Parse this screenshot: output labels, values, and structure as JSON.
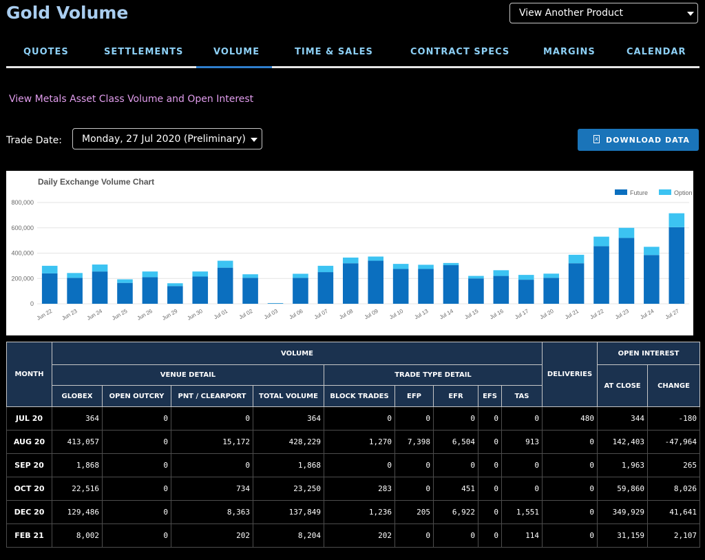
{
  "header": {
    "title": "Gold Volume",
    "product_select": "View Another Product"
  },
  "nav": {
    "tabs": [
      "QUOTES",
      "SETTLEMENTS",
      "VOLUME",
      "TIME & SALES",
      "CONTRACT SPECS",
      "MARGINS",
      "CALENDAR"
    ],
    "active": "VOLUME"
  },
  "asset_link": "View Metals Asset Class Volume and Open Interest",
  "trade_date": {
    "label": "Trade Date:",
    "value": "Monday, 27 Jul 2020 (Preliminary)"
  },
  "download_label": "DOWNLOAD DATA",
  "colors": {
    "accent": "#2f7fce",
    "future": "#0b6fbf",
    "option": "#3cc3f2",
    "header_bg": "#1b324f"
  },
  "chart_data": {
    "type": "bar",
    "title": "Daily Exchange Volume Chart",
    "categories": [
      "Jun 22",
      "Jun 23",
      "Jun 24",
      "Jun 25",
      "Jun 26",
      "Jun 29",
      "Jun 30",
      "Jul 01",
      "Jul 02",
      "Jul 03",
      "Jul 06",
      "Jul 07",
      "Jul 08",
      "Jul 09",
      "Jul 10",
      "Jul 13",
      "Jul 14",
      "Jul 15",
      "Jul 16",
      "Jul 17",
      "Jul 20",
      "Jul 21",
      "Jul 22",
      "Jul 23",
      "Jul 24",
      "Jul 27"
    ],
    "stacked": true,
    "series": [
      {
        "name": "Future",
        "values": [
          240000,
          205000,
          255000,
          165000,
          210000,
          140000,
          215000,
          285000,
          205000,
          3000,
          205000,
          250000,
          320000,
          340000,
          275000,
          275000,
          305000,
          200000,
          220000,
          190000,
          205000,
          320000,
          455000,
          520000,
          385000,
          605000
        ]
      },
      {
        "name": "Option",
        "values": [
          60000,
          38000,
          55000,
          28000,
          45000,
          22000,
          40000,
          55000,
          28000,
          2000,
          32000,
          50000,
          45000,
          33000,
          40000,
          33000,
          17000,
          20000,
          45000,
          38000,
          33000,
          67000,
          75000,
          80000,
          65000,
          110000
        ]
      }
    ],
    "yticks": [
      "0",
      "200,000",
      "400,000",
      "600,000",
      "800,000"
    ],
    "ylim": [
      0,
      800000
    ],
    "legend_position": "top-right",
    "grid": true
  },
  "table": {
    "group_headers": {
      "month": "MONTH",
      "volume": "VOLUME",
      "venue_detail": "VENUE DETAIL",
      "trade_type_detail": "TRADE TYPE DETAIL",
      "deliveries": "DELIVERIES",
      "open_interest": "OPEN INTEREST"
    },
    "columns": [
      "GLOBEX",
      "OPEN OUTCRY",
      "PNT / CLEARPORT",
      "TOTAL VOLUME",
      "BLOCK TRADES",
      "EFP",
      "EFR",
      "EFS",
      "TAS",
      "AT CLOSE",
      "CHANGE"
    ],
    "rows": [
      [
        "JUL 20",
        "364",
        "0",
        "0",
        "364",
        "0",
        "0",
        "0",
        "0",
        "0",
        "480",
        "344",
        "-180"
      ],
      [
        "AUG 20",
        "413,057",
        "0",
        "15,172",
        "428,229",
        "1,270",
        "7,398",
        "6,504",
        "0",
        "913",
        "0",
        "142,403",
        "-47,964"
      ],
      [
        "SEP 20",
        "1,868",
        "0",
        "0",
        "1,868",
        "0",
        "0",
        "0",
        "0",
        "0",
        "0",
        "1,963",
        "265"
      ],
      [
        "OCT 20",
        "22,516",
        "0",
        "734",
        "23,250",
        "283",
        "0",
        "451",
        "0",
        "0",
        "0",
        "59,860",
        "8,026"
      ],
      [
        "DEC 20",
        "129,486",
        "0",
        "8,363",
        "137,849",
        "1,236",
        "205",
        "6,922",
        "0",
        "1,551",
        "0",
        "349,929",
        "41,641"
      ],
      [
        "FEB 21",
        "8,002",
        "0",
        "202",
        "8,204",
        "202",
        "0",
        "0",
        "0",
        "114",
        "0",
        "31,159",
        "2,107"
      ]
    ]
  }
}
